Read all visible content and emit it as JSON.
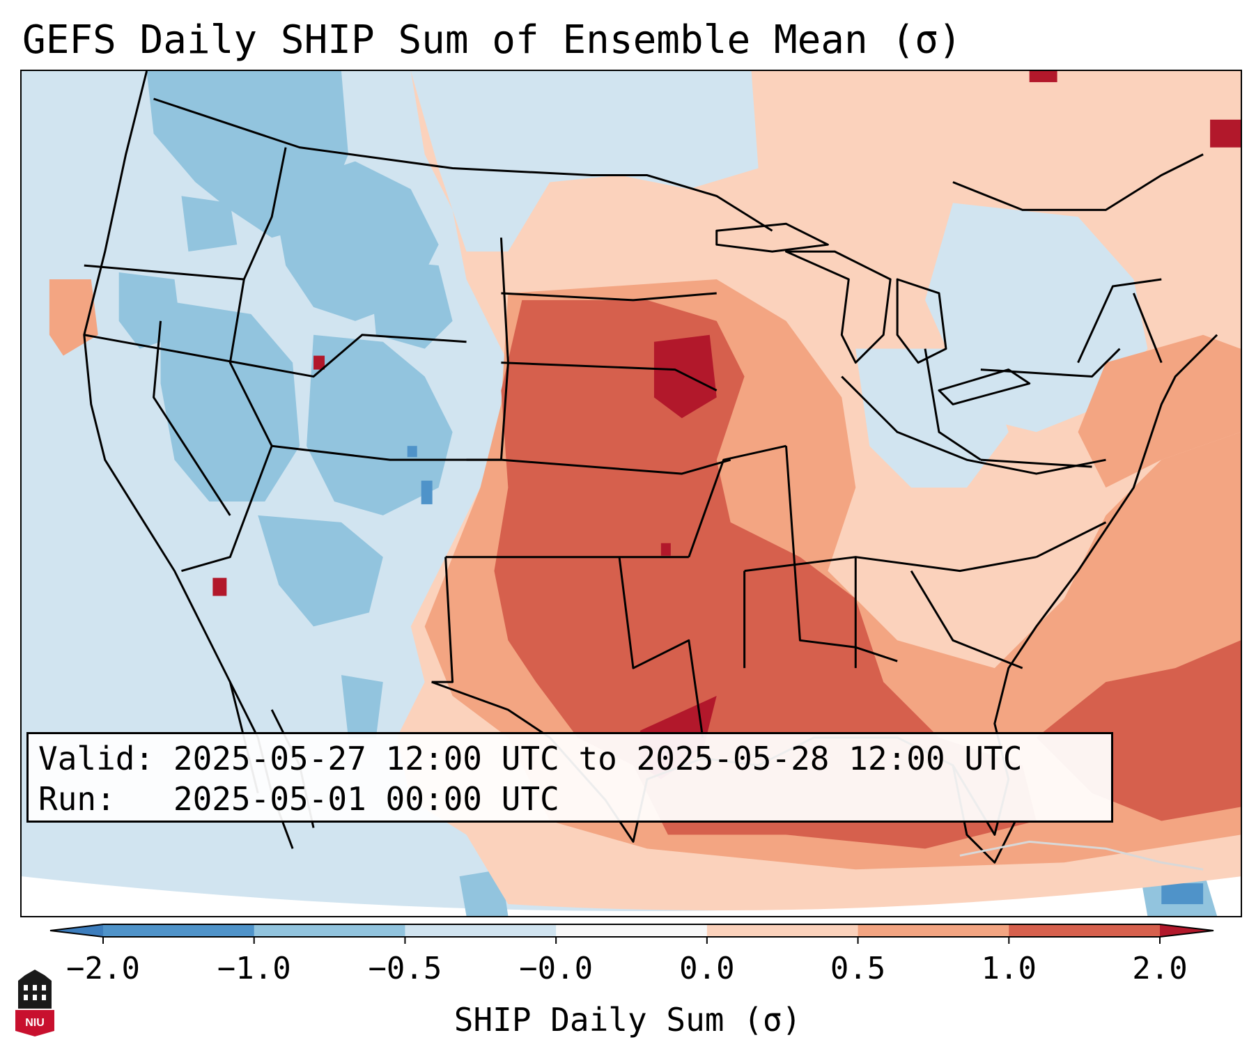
{
  "title": "GEFS Daily SHIP Sum of Ensemble Mean (σ)",
  "info": {
    "valid_label": "Valid:",
    "valid_value": "2025-05-27 12:00 UTC to 2025-05-28 12:00 UTC",
    "run_label": "Run:",
    "run_value": "2025-05-01 00:00 UTC"
  },
  "colorbar": {
    "label": "SHIP Daily Sum (σ)",
    "ticks": [
      "−2.0",
      "−1.0",
      "−0.5",
      "−0.0",
      "0.0",
      "0.5",
      "1.0",
      "2.0"
    ],
    "colors": {
      "below_min": "#3c7dbd",
      "lt_neg1": "#4f93c9",
      "neg1_to_neg05": "#92c4de",
      "neg05_to_0": "#d1e4f0",
      "zero_band": "#f8f8f8",
      "pos0_to_05": "#fbd2bc",
      "pos05_to_1": "#f3a582",
      "pos1_to_2": "#d6604d",
      "above_max": "#b2182b"
    }
  },
  "map": {
    "projection": "Lambert conformal, CONUS",
    "features": [
      "state-borders",
      "coastlines",
      "country-borders"
    ],
    "pattern_note": "Positive anomalies over central/southern Plains, Mississippi Valley and Gulf; negative anomalies over the interior West"
  },
  "logo": {
    "text": "NIU",
    "colors": {
      "shield": "#c8102e",
      "building": "#1a1a1a"
    }
  }
}
